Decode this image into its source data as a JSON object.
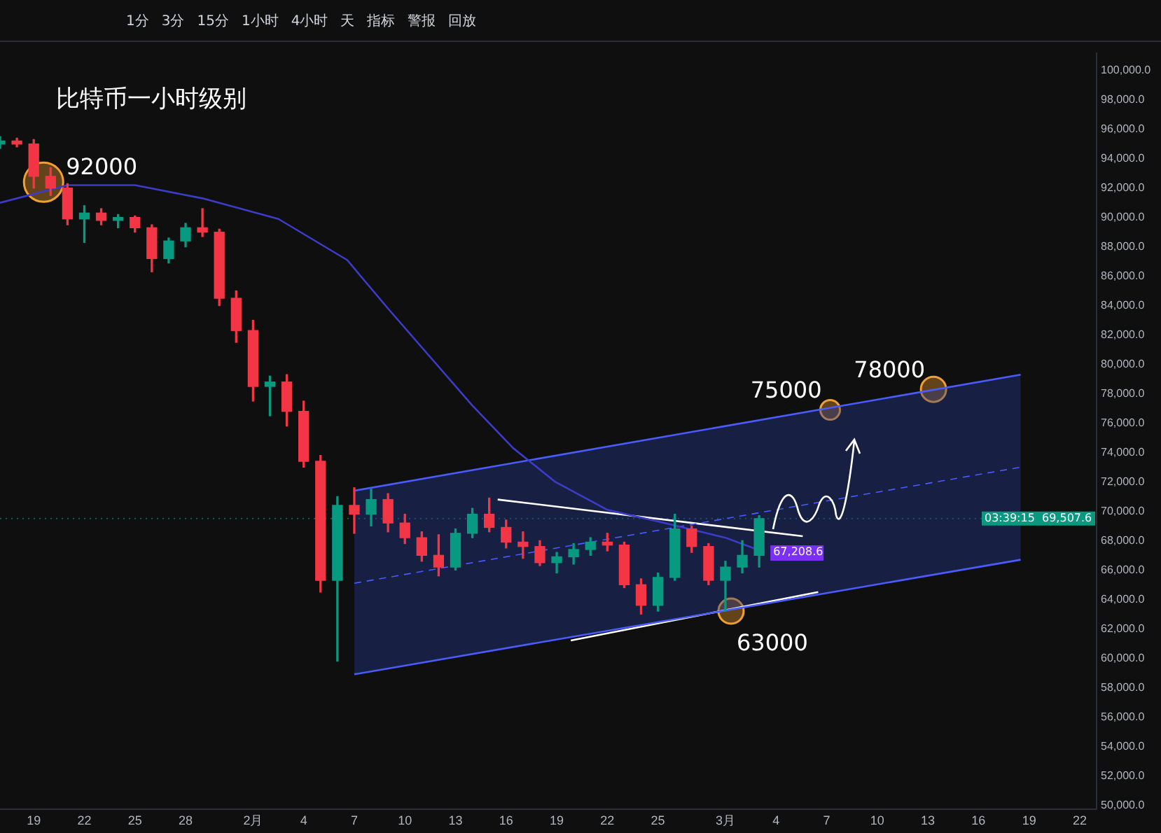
{
  "chart_data": {
    "type": "candlestick",
    "title": "比特币一小时级别",
    "x": [
      "--01-17",
      "--01-18",
      "--01-19",
      "--01-20",
      "--01-21",
      "--01-22",
      "--01-23",
      "--01-24",
      "--01-25",
      "--01-26",
      "--01-27",
      "--01-28",
      "--01-29",
      "--01-30",
      "--01-31",
      "--02-01",
      "--02-02",
      "--02-03",
      "--02-04",
      "--02-05",
      "--02-06",
      "--02-07",
      "--02-08",
      "--02-09",
      "--02-10",
      "--02-11",
      "--02-12",
      "--02-13",
      "--02-14",
      "--02-15",
      "--02-16",
      "--02-17",
      "--02-18",
      "--02-19",
      "--02-20",
      "--02-21",
      "--02-22",
      "--02-23",
      "--02-24",
      "--02-25",
      "--02-26",
      "--02-27",
      "--02-28",
      "--03-01",
      "--03-02",
      "--03-03"
    ],
    "ohlc": [
      [
        95000,
        95500,
        94700,
        95200
      ],
      [
        95200,
        95400,
        94800,
        95000
      ],
      [
        95000,
        95300,
        92000,
        92800
      ],
      [
        92800,
        93400,
        91500,
        92000
      ],
      [
        92000,
        92300,
        89500,
        89900
      ],
      [
        89900,
        90800,
        88300,
        90300
      ],
      [
        90300,
        90600,
        89500,
        89800
      ],
      [
        89800,
        90200,
        89300,
        90000
      ],
      [
        90000,
        90100,
        89000,
        89300
      ],
      [
        89300,
        89500,
        86300,
        87200
      ],
      [
        87200,
        88600,
        86900,
        88400
      ],
      [
        88400,
        89600,
        88000,
        89300
      ],
      [
        89300,
        90600,
        88700,
        89000
      ],
      [
        89000,
        89200,
        84000,
        84500
      ],
      [
        84500,
        85000,
        81500,
        82300
      ],
      [
        82300,
        83000,
        77500,
        78500
      ],
      [
        78500,
        79200,
        76500,
        78800
      ],
      [
        78800,
        79300,
        75800,
        76800
      ],
      [
        76800,
        77500,
        73000,
        73400
      ],
      [
        73400,
        73800,
        64500,
        65300
      ],
      [
        65300,
        71000,
        59800,
        70400
      ],
      [
        70400,
        71600,
        68500,
        69800
      ],
      [
        69800,
        71500,
        69000,
        70800
      ],
      [
        70800,
        71200,
        68600,
        69200
      ],
      [
        69200,
        69800,
        67800,
        68200
      ],
      [
        68200,
        68600,
        66600,
        67000
      ],
      [
        67000,
        68400,
        65600,
        66200
      ],
      [
        66200,
        68800,
        66000,
        68500
      ],
      [
        68500,
        70200,
        68200,
        69800
      ],
      [
        69800,
        70900,
        68600,
        68900
      ],
      [
        68900,
        69400,
        67500,
        67900
      ],
      [
        67900,
        68600,
        66800,
        67600
      ],
      [
        67600,
        68000,
        66300,
        66500
      ],
      [
        66500,
        67200,
        65800,
        66900
      ],
      [
        66900,
        67800,
        66400,
        67400
      ],
      [
        67400,
        68200,
        67000,
        67900
      ],
      [
        67900,
        68500,
        67300,
        67700
      ],
      [
        67700,
        67900,
        64800,
        65000
      ],
      [
        65000,
        65400,
        63000,
        63600
      ],
      [
        63600,
        65800,
        63200,
        65500
      ],
      [
        65500,
        69800,
        65300,
        68800
      ],
      [
        68800,
        69000,
        67200,
        67600
      ],
      [
        67600,
        67800,
        65000,
        65300
      ],
      [
        65300,
        66600,
        63200,
        66200
      ],
      [
        66200,
        68000,
        65800,
        67000
      ],
      [
        67000,
        69700,
        66200,
        69500
      ]
    ],
    "colors": [
      "#089981",
      "#f23645",
      "#f23645",
      "#f23645",
      "#f23645",
      "#089981",
      "#f23645",
      "#089981",
      "#f23645",
      "#f23645",
      "#089981",
      "#089981",
      "#f23645",
      "#f23645",
      "#f23645",
      "#f23645",
      "#089981",
      "#f23645",
      "#f23645",
      "#f23645",
      "#089981",
      "#f23645",
      "#089981",
      "#f23645",
      "#f23645",
      "#f23645",
      "#f23645",
      "#089981",
      "#089981",
      "#f23645",
      "#f23645",
      "#f23645",
      "#f23645",
      "#089981",
      "#089981",
      "#089981",
      "#f23645",
      "#f23645",
      "#f23645",
      "#089981",
      "#089981",
      "#f23645",
      "#f23645",
      "#089981",
      "#089981",
      "#089981"
    ],
    "series": [
      {
        "type": "line",
        "color": "#3c3cc8",
        "x": [
          "--01-17",
          "--01-21",
          "--01-25",
          "--01-29",
          "--02-02T12:00",
          "--02-06T14:00",
          "--02-09",
          "--02-11T12:00",
          "--02-14",
          "--02-16T10:00",
          "--02-18T22:00",
          "--02-22",
          "--02-25T10:00",
          "--03-01",
          "--03-03T08:00"
        ],
        "values": [
          91000,
          92200,
          92200,
          91300,
          89900,
          87100,
          83800,
          80500,
          77200,
          74300,
          72000,
          70100,
          69200,
          68200,
          67208.6
        ],
        "value_labels": [
          null,
          null,
          null,
          null,
          null,
          null,
          null,
          null,
          null,
          null,
          null,
          null,
          null,
          null,
          "67,208.6"
        ]
      },
      {
        "type": "line",
        "color": "#4a5cff",
        "line_style": "dashed",
        "x": [
          "--02-07",
          "--03-18T12:00"
        ],
        "values": [
          65100,
          73000
        ],
        "lower": [
          58900,
          66700
        ],
        "upper": [
          71400,
          79300
        ]
      },
      {
        "type": "line",
        "color": "#4a5cff",
        "x": [
          "--02-07",
          "--03-18T12:00"
        ],
        "values": [
          71400,
          79300
        ]
      },
      {
        "type": "line",
        "color": "#4a5cff",
        "x": [
          "--02-07",
          "--03-18T12:00"
        ],
        "values": [
          58900,
          66700
        ]
      },
      {
        "type": "line",
        "color": "#ffffff",
        "x": [
          "--02-15T12:00",
          "--03-05T14:00"
        ],
        "values": [
          70800,
          68300
        ]
      },
      {
        "type": "line",
        "color": "#ffffff",
        "x": [
          "--02-19T20:00",
          "--03-06T12:00"
        ],
        "values": [
          61200,
          64500
        ]
      }
    ],
    "xlim": [
      "--01-17",
      "--03-23"
    ],
    "xticks": [
      {
        "value": "--01-19",
        "label": "19"
      },
      {
        "value": "--01-22",
        "label": "22"
      },
      {
        "value": "--01-25",
        "label": "25"
      },
      {
        "value": "--01-28",
        "label": "28"
      },
      {
        "value": "--02-01",
        "label": "2月"
      },
      {
        "value": "--02-04",
        "label": "4"
      },
      {
        "value": "--02-07",
        "label": "7"
      },
      {
        "value": "--02-10",
        "label": "10"
      },
      {
        "value": "--02-13",
        "label": "13"
      },
      {
        "value": "--02-16",
        "label": "16"
      },
      {
        "value": "--02-19",
        "label": "19"
      },
      {
        "value": "--02-22",
        "label": "22"
      },
      {
        "value": "--02-25",
        "label": "25"
      },
      {
        "value": "--03-01",
        "label": "3月"
      },
      {
        "value": "--03-04",
        "label": "4"
      },
      {
        "value": "--03-07",
        "label": "7"
      },
      {
        "value": "--03-10",
        "label": "10"
      },
      {
        "value": "--03-13",
        "label": "13"
      },
      {
        "value": "--03-16",
        "label": "16"
      },
      {
        "value": "--03-19",
        "label": "19"
      },
      {
        "value": "--03-22",
        "label": "22"
      }
    ],
    "ylim": [
      49700,
      101200
    ],
    "yticks": [
      {
        "value": 50000,
        "label": "50,000.0"
      },
      {
        "value": 52000,
        "label": "52,000.0"
      },
      {
        "value": 54000,
        "label": "54,000.0"
      },
      {
        "value": 56000,
        "label": "56,000.0"
      },
      {
        "value": 58000,
        "label": "58,000.0"
      },
      {
        "value": 60000,
        "label": "60,000.0"
      },
      {
        "value": 62000,
        "label": "62,000.0"
      },
      {
        "value": 64000,
        "label": "64,000.0"
      },
      {
        "value": 66000,
        "label": "66,000.0"
      },
      {
        "value": 68000,
        "label": "68,000.0"
      },
      {
        "value": 70000,
        "label": "70,000.0"
      },
      {
        "value": 72000,
        "label": "72,000.0"
      },
      {
        "value": 74000,
        "label": "74,000.0"
      },
      {
        "value": 76000,
        "label": "76,000.0"
      },
      {
        "value": 78000,
        "label": "78,000.0"
      },
      {
        "value": 80000,
        "label": "80,000.0"
      },
      {
        "value": 82000,
        "label": "82,000.0"
      },
      {
        "value": 84000,
        "label": "84,000.0"
      },
      {
        "value": 86000,
        "label": "86,000.0"
      },
      {
        "value": 88000,
        "label": "88,000.0"
      },
      {
        "value": 90000,
        "label": "90,000.0"
      },
      {
        "value": 92000,
        "label": "92,000.0"
      },
      {
        "value": 94000,
        "label": "94,000.0"
      },
      {
        "value": 96000,
        "label": "96,000.0"
      },
      {
        "value": 98000,
        "label": "98,000.0"
      },
      {
        "value": 100000,
        "label": "100,000.0"
      }
    ],
    "ref_lines": [
      {
        "axis": "y",
        "value": 69507.6,
        "label": "69,507.6\n03:39:15",
        "color": "#089981",
        "line_style": "dotted"
      }
    ],
    "annotations": [
      {
        "text": "92000",
        "x": "--01-19T14:00",
        "y": 92400
      },
      {
        "text": "75000",
        "x": "--03-07T05:00",
        "y": 76900
      },
      {
        "text": "78000",
        "x": "--03-13T08:00",
        "y": 78300
      },
      {
        "text": "63000",
        "x": "--03-01T08:00",
        "y": 63200
      },
      "1分",
      "3分",
      "15分",
      "1小时",
      "4小时",
      "天",
      "指标",
      "警报",
      "回放"
    ]
  }
}
